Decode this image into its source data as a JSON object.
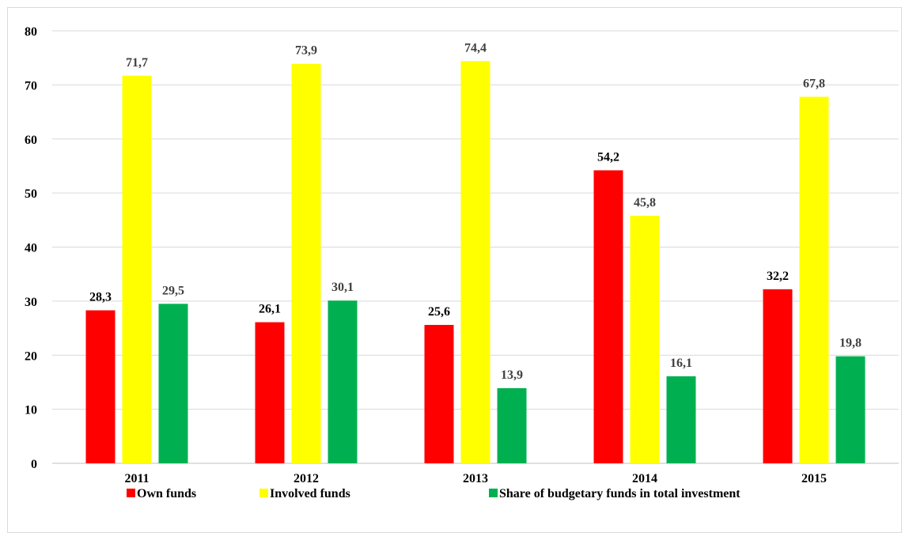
{
  "chart_data": {
    "type": "bar",
    "title": "",
    "xlabel": "",
    "ylabel": "",
    "categories": [
      "2011",
      "2012",
      "2013",
      "2014",
      "2015"
    ],
    "ylim": [
      0,
      80
    ],
    "yticks": [
      0,
      10,
      20,
      30,
      40,
      50,
      60,
      70,
      80
    ],
    "grid": true,
    "legend_position": "bottom",
    "decimal_separator": ",",
    "series": [
      {
        "name": "Own funds",
        "color": "#ff0000",
        "label_color": "#000000",
        "values": [
          28.3,
          26.1,
          25.6,
          54.2,
          32.2
        ]
      },
      {
        "name": "Involved funds",
        "color": "#ffff00",
        "label_color": "#404040",
        "values": [
          71.7,
          73.9,
          74.4,
          45.8,
          67.8
        ]
      },
      {
        "name": "Share of budgetary funds in total investment",
        "color": "#00b050",
        "label_color": "#404040",
        "values": [
          29.5,
          30.1,
          13.9,
          16.1,
          19.8
        ]
      }
    ]
  }
}
